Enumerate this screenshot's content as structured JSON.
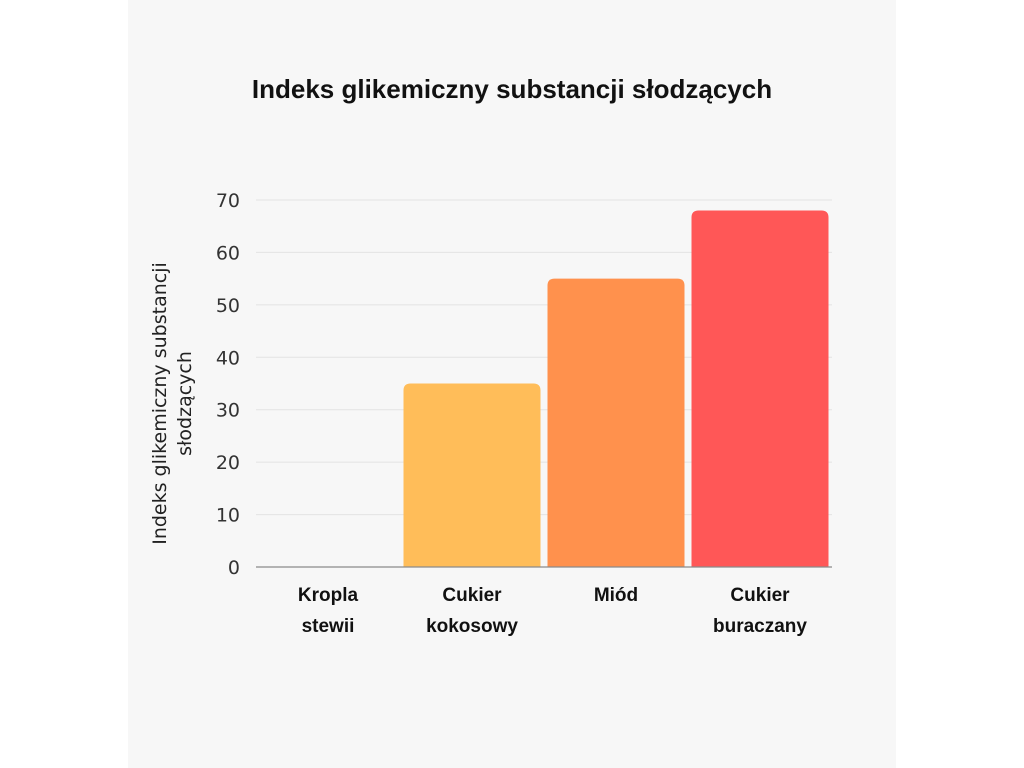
{
  "chart_data": {
    "type": "bar",
    "title": "Indeks glikemiczny substancji słodzących",
    "ylabel_lines": [
      "Indeks glikemiczny substancji",
      "słodzących"
    ],
    "xlabel": "",
    "categories": [
      [
        "Kropla",
        "stewii"
      ],
      [
        "Cukier",
        "kokosowy"
      ],
      [
        "Miód"
      ],
      [
        "Cukier",
        "buraczany"
      ]
    ],
    "values": [
      0,
      35,
      55,
      68
    ],
    "colors": [
      "#ffbd59",
      "#ffbd59",
      "#ff914d",
      "#ff5757"
    ],
    "ylim": [
      0,
      70
    ],
    "yticks": [
      0,
      10,
      20,
      30,
      40,
      50,
      60,
      70
    ],
    "grid": true,
    "legend": "none"
  }
}
